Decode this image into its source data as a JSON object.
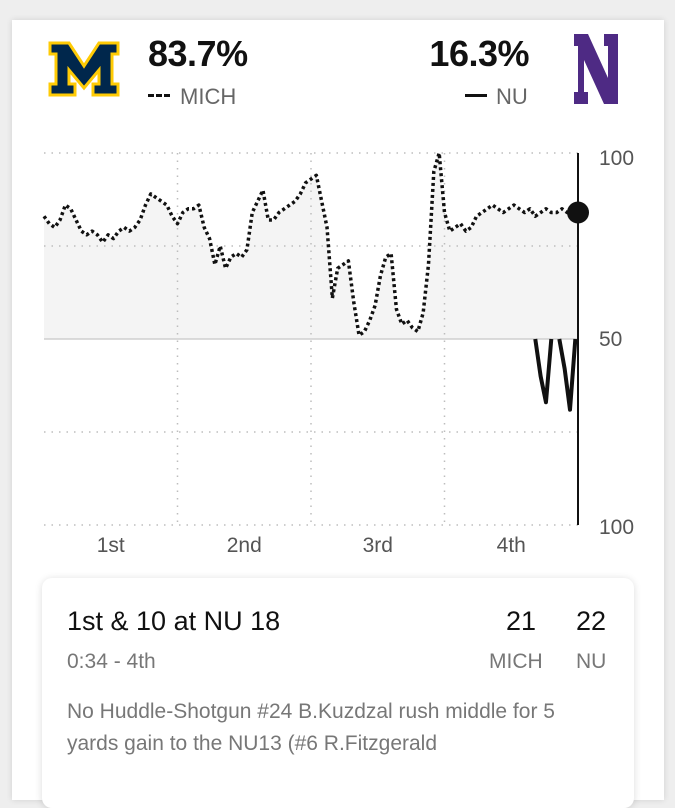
{
  "header": {
    "home": {
      "name": "MICH",
      "prob": "83.7%",
      "logo_icon": "michigan-block-m-logo",
      "color": "#00274C",
      "accent": "#FFCB05",
      "legend_style": "dotted"
    },
    "away": {
      "name": "NU",
      "prob": "16.3%",
      "logo_icon": "northwestern-n-logo",
      "color": "#4E2A84",
      "legend_style": "solid"
    }
  },
  "chart_data": {
    "type": "line",
    "title": "",
    "xlabel": "",
    "ylabel": "",
    "y_tick_labels": [
      "100",
      "50",
      "100"
    ],
    "x_tick_labels": [
      "1st",
      "2nd",
      "3rd",
      "4th"
    ],
    "x_range": [
      0,
      100
    ],
    "ylim": [
      0,
      100
    ],
    "grid": true,
    "current_marker": {
      "x": 100,
      "y": 84
    },
    "series": [
      {
        "name": "MICH",
        "style": "dotted",
        "x": [
          0,
          1,
          2,
          3,
          4,
          5,
          6,
          7,
          8,
          9,
          10,
          11,
          12,
          13,
          14,
          15,
          16,
          17,
          18,
          19,
          20,
          21,
          22,
          23,
          24,
          25,
          26,
          27,
          28,
          29,
          30,
          31,
          32,
          33,
          34,
          35,
          36,
          37,
          38,
          39,
          40,
          41,
          42,
          43,
          44,
          45,
          46,
          47,
          48,
          49,
          50,
          51,
          52,
          53,
          54,
          55,
          56,
          57,
          58,
          59,
          60,
          61,
          62,
          63,
          64,
          65,
          66,
          67,
          68,
          69,
          70,
          71,
          72,
          73,
          74,
          75,
          76,
          77,
          78,
          79,
          80,
          81,
          82,
          83,
          84,
          85,
          86,
          87,
          88,
          89,
          90,
          91,
          92,
          93,
          94,
          95,
          96,
          97,
          98,
          99,
          100
        ],
        "y": [
          83,
          81,
          80,
          82,
          86,
          85,
          82,
          79,
          78,
          79,
          78,
          76,
          78,
          77,
          79,
          80,
          79,
          80,
          82,
          86,
          89,
          88,
          87,
          86,
          83,
          81,
          84,
          85,
          85,
          86,
          80,
          77,
          70,
          75,
          69,
          72,
          73,
          72,
          74,
          84,
          87,
          90,
          82,
          82,
          84,
          85,
          86,
          87,
          89,
          92,
          93,
          94,
          87,
          80,
          61,
          69,
          70,
          71,
          60,
          51,
          52,
          55,
          59,
          67,
          72,
          73,
          58,
          54,
          55,
          53,
          52,
          57,
          70,
          95,
          100,
          84,
          79,
          80,
          81,
          79,
          80,
          83,
          84,
          85,
          86,
          85,
          84,
          85,
          86,
          85,
          84,
          85,
          83,
          84,
          85,
          84,
          84,
          85,
          84,
          84,
          84
        ]
      },
      {
        "name": "NU",
        "style": "solid",
        "segments": [
          {
            "x": [
              92,
              93,
              94,
              95
            ],
            "y": [
              50,
              40,
              33,
              50
            ]
          },
          {
            "x": [
              96.5,
              97.5,
              98.5,
              99.5
            ],
            "y": [
              50,
              42,
              31,
              50
            ]
          }
        ]
      }
    ]
  },
  "play": {
    "down_distance": "1st & 10 at NU 18",
    "time": "0:34 - 4th",
    "home_score": "21",
    "away_score": "22",
    "home_abbr": "MICH",
    "away_abbr": "NU",
    "description": "No Huddle-Shotgun #24 B.Kuzdzal rush middle for 5 yards gain to the NU13 (#6 R.Fitzgerald"
  }
}
